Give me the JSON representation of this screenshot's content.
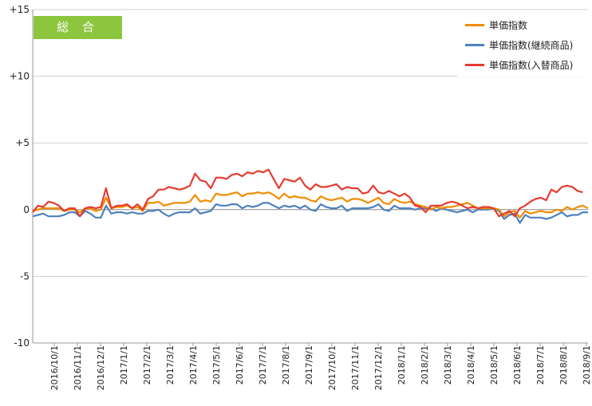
{
  "badge": {
    "label": "総 合",
    "color": "#8cc63f"
  },
  "chart_data": {
    "type": "line",
    "ylim": [
      -10,
      15
    ],
    "yticks": [
      "+15",
      "+10",
      "+5",
      "0",
      "-5",
      "-10"
    ],
    "ytick_values": [
      15,
      10,
      5,
      0,
      -5,
      -10
    ],
    "grid": "horizontal",
    "legend_position": "top-right",
    "x_tick_labels": [
      "2016/10/1",
      "2016/11/1",
      "2016/12/1",
      "2017/1/1",
      "2017/2/1",
      "2017/3/1",
      "2017/4/1",
      "2017/5/1",
      "2017/6/1",
      "2017/7/1",
      "2017/8/1",
      "2017/9/1",
      "2017/10/1",
      "2017/11/1",
      "2017/12/1",
      "2018/1/1",
      "2018/2/1",
      "2018/3/1",
      "2018/4/1",
      "2018/5/1",
      "2018/6/1",
      "2018/7/1",
      "2018/8/1",
      "2018/9/1"
    ],
    "series": [
      {
        "name": "単価指数",
        "color": "#f28c00",
        "values": [
          -0.1,
          0.0,
          0.1,
          0.1,
          0.1,
          0.1,
          -0.1,
          0.0,
          0.0,
          -0.2,
          0.1,
          0.1,
          -0.1,
          0.0,
          0.9,
          0.1,
          0.2,
          0.2,
          0.3,
          0.1,
          0.2,
          -0.1,
          0.5,
          0.5,
          0.6,
          0.3,
          0.4,
          0.5,
          0.5,
          0.5,
          0.6,
          1.1,
          0.6,
          0.7,
          0.6,
          1.2,
          1.1,
          1.1,
          1.2,
          1.3,
          1.0,
          1.2,
          1.2,
          1.3,
          1.2,
          1.3,
          1.1,
          0.8,
          1.2,
          0.9,
          1.0,
          0.9,
          0.9,
          0.7,
          0.6,
          1.0,
          0.8,
          0.7,
          0.8,
          0.9,
          0.6,
          0.8,
          0.8,
          0.7,
          0.5,
          0.7,
          0.9,
          0.5,
          0.4,
          0.8,
          0.6,
          0.5,
          0.6,
          0.4,
          0.3,
          0.2,
          0.0,
          0.2,
          0.1,
          0.2,
          0.2,
          0.3,
          0.4,
          0.5,
          0.3,
          0.1,
          0.1,
          0.1,
          0.1,
          0.0,
          -0.5,
          -0.2,
          -0.1,
          -0.6,
          -0.1,
          -0.3,
          -0.2,
          -0.1,
          -0.2,
          -0.2,
          0.0,
          -0.1,
          0.2,
          0.0,
          0.2,
          0.3,
          0.1
        ]
      },
      {
        "name": "単価指数(継続商品)",
        "color": "#4f81bd",
        "values": [
          -0.5,
          -0.4,
          -0.3,
          -0.5,
          -0.5,
          -0.5,
          -0.4,
          -0.2,
          -0.2,
          -0.5,
          -0.1,
          -0.3,
          -0.6,
          -0.6,
          0.3,
          -0.3,
          -0.2,
          -0.2,
          -0.3,
          -0.2,
          -0.3,
          -0.3,
          -0.1,
          -0.1,
          0.0,
          -0.3,
          -0.5,
          -0.3,
          -0.2,
          -0.2,
          -0.2,
          0.1,
          -0.3,
          -0.2,
          -0.1,
          0.4,
          0.3,
          0.3,
          0.4,
          0.4,
          0.1,
          0.3,
          0.2,
          0.3,
          0.5,
          0.5,
          0.3,
          0.1,
          0.3,
          0.2,
          0.3,
          0.1,
          0.3,
          0.0,
          -0.1,
          0.4,
          0.2,
          0.1,
          0.1,
          0.3,
          -0.1,
          0.1,
          0.1,
          0.1,
          0.1,
          0.2,
          0.4,
          0.0,
          -0.1,
          0.3,
          0.1,
          0.1,
          0.1,
          0.0,
          0.1,
          0.1,
          0.1,
          -0.1,
          0.1,
          0.0,
          -0.1,
          -0.2,
          -0.1,
          0.0,
          -0.2,
          0.0,
          0.0,
          0.0,
          0.1,
          -0.1,
          -0.7,
          -0.4,
          -0.3,
          -1.0,
          -0.4,
          -0.6,
          -0.6,
          -0.6,
          -0.7,
          -0.6,
          -0.4,
          -0.2,
          -0.5,
          -0.4,
          -0.4,
          -0.2,
          -0.2
        ]
      },
      {
        "name": "単価指数(入替商品)",
        "color": "#e53c30",
        "values": [
          -0.2,
          0.3,
          0.2,
          0.6,
          0.5,
          0.3,
          -0.1,
          0.1,
          0.1,
          -0.5,
          0.1,
          0.2,
          0.1,
          0.2,
          1.6,
          0.1,
          0.3,
          0.3,
          0.4,
          0.1,
          0.4,
          0.0,
          0.8,
          1.0,
          1.5,
          1.5,
          1.7,
          1.6,
          1.5,
          1.6,
          1.8,
          2.7,
          2.2,
          2.1,
          1.6,
          2.4,
          2.4,
          2.3,
          2.6,
          2.7,
          2.5,
          2.8,
          2.7,
          2.9,
          2.8,
          3.0,
          2.3,
          1.6,
          2.3,
          2.2,
          2.1,
          2.4,
          1.8,
          1.5,
          1.9,
          1.7,
          1.7,
          1.8,
          1.9,
          1.5,
          1.7,
          1.6,
          1.6,
          1.2,
          1.3,
          1.8,
          1.3,
          1.2,
          1.4,
          1.2,
          1.0,
          1.2,
          0.9,
          0.3,
          0.2,
          -0.2,
          0.3,
          0.3,
          0.3,
          0.5,
          0.6,
          0.5,
          0.3,
          0.1,
          0.2,
          0.1,
          0.2,
          0.2,
          0.1,
          -0.5,
          -0.3,
          -0.1,
          -0.5,
          0.1,
          0.3,
          0.6,
          0.8,
          0.9,
          0.7,
          1.5,
          1.3,
          1.7,
          1.8,
          1.7,
          1.4,
          1.3
        ]
      }
    ]
  }
}
